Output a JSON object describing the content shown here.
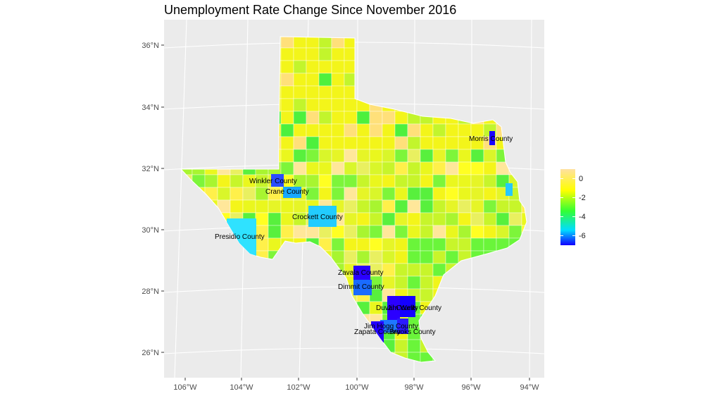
{
  "title": "Unemployment Rate Change Since November 2016",
  "chart_data": {
    "type": "choropleth",
    "region": "Texas counties",
    "variable": "Unemployment rate change since November 2016",
    "x_ticks": [
      "106°W",
      "104°W",
      "102°W",
      "100°W",
      "98°W",
      "96°W",
      "94°W"
    ],
    "y_ticks": [
      "36°N",
      "34°N",
      "32°N",
      "30°N",
      "28°N",
      "26°N"
    ],
    "grid": true,
    "legend": {
      "position": "right",
      "ticks": [
        0,
        -2,
        -4,
        -6
      ],
      "range": [
        -7.2,
        0.8
      ],
      "colors": [
        "#1100ff",
        "#00ddff",
        "#33ff33",
        "#ffff00",
        "#ffe0a0"
      ]
    },
    "labeled_counties": [
      {
        "name": "Morris County"
      },
      {
        "name": "Winkler County"
      },
      {
        "name": "Crane County"
      },
      {
        "name": "Crockett County"
      },
      {
        "name": "Presidio County"
      },
      {
        "name": "Zavala County"
      },
      {
        "name": "Dimmit County"
      },
      {
        "name": "Duval County"
      },
      {
        "name": "Jim Wells County"
      },
      {
        "name": "Jim Hogg County"
      },
      {
        "name": "Zapata County"
      },
      {
        "name": "Brooks County"
      }
    ]
  }
}
